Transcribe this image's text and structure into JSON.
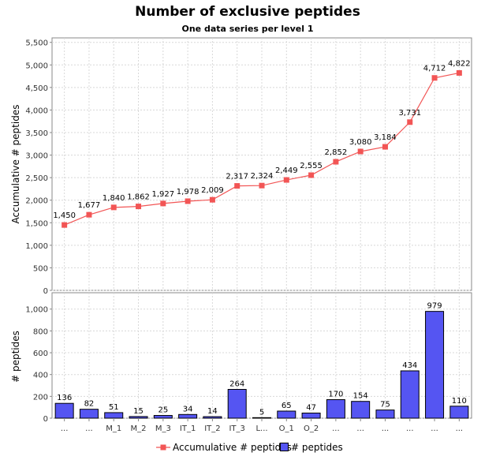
{
  "chart_data": {
    "type": "bar",
    "title": "Number of exclusive peptides",
    "subtitle": "One data series per level 1",
    "categories": [
      "...",
      "...",
      "M_1",
      "M_2",
      "M_3",
      "IT_1",
      "IT_2",
      "IT_3",
      "L...",
      "O_1",
      "O_2",
      "...",
      "...",
      "...",
      "...",
      "...",
      "..."
    ],
    "top_plot": {
      "type": "line",
      "ylabel": "Accumulative # peptides",
      "ylim": [
        0,
        5600
      ],
      "yticks": [
        0,
        500,
        1000,
        1500,
        2000,
        2500,
        3000,
        3500,
        4000,
        4500,
        5000,
        5500
      ],
      "ytick_labels": [
        "0",
        "500",
        "1,000",
        "1,500",
        "2,000",
        "2,500",
        "3,000",
        "3,500",
        "4,000",
        "4,500",
        "5,000",
        "5,500"
      ],
      "series": [
        {
          "name": "Accumulative # peptides",
          "color": "#f25555",
          "values": [
            1450,
            1677,
            1840,
            1862,
            1927,
            1978,
            2009,
            2317,
            2324,
            2449,
            2555,
            2852,
            3080,
            3184,
            3731,
            4712,
            4822
          ],
          "labels": [
            "1,450",
            "1,677",
            "1,840",
            "1,862",
            "1,927",
            "1,978",
            "2,009",
            "2,317",
            "2,324",
            "2,449",
            "2,555",
            "2,852",
            "3,080",
            "3,184",
            "3,731",
            "4,712",
            "4,822"
          ]
        }
      ]
    },
    "bottom_plot": {
      "type": "bar",
      "ylabel": "# peptides",
      "ylim": [
        0,
        1150
      ],
      "yticks": [
        0,
        200,
        400,
        600,
        800,
        1000
      ],
      "ytick_labels": [
        "0",
        "200",
        "400",
        "600",
        "800",
        "1,000"
      ],
      "series": [
        {
          "name": "# peptides",
          "color": "#5555f2",
          "values": [
            136,
            82,
            51,
            15,
            25,
            34,
            14,
            264,
            5,
            65,
            47,
            170,
            154,
            75,
            434,
            979,
            110
          ],
          "labels": [
            "136",
            "82",
            "51",
            "15",
            "25",
            "34",
            "14",
            "264",
            "5",
            "65",
            "47",
            "170",
            "154",
            "75",
            "434",
            "979",
            "110"
          ]
        }
      ]
    },
    "grid": true,
    "legend_position": "bottom"
  }
}
